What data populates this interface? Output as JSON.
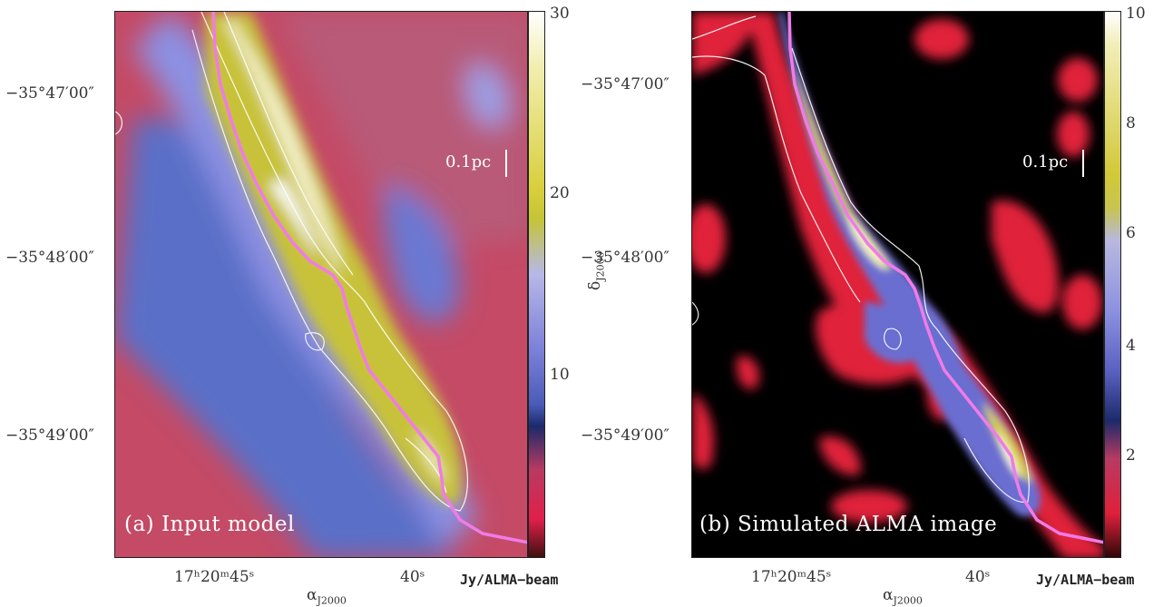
{
  "panels": [
    {
      "caption": "(a) Input model",
      "scale_label": "0.1pc",
      "colorbar_ticks": [
        "30",
        "20",
        "10"
      ],
      "dec_ticks": [
        "−35°47′00″",
        "−35°48′00″",
        "−35°49′00″"
      ],
      "ra_ticks": [
        "17ʰ20ᵐ45ˢ",
        "40ˢ"
      ],
      "x_axis_label": "α",
      "x_axis_sub": "J2000",
      "unit": "Jy/ALMA−beam"
    },
    {
      "caption": "(b) Simulated ALMA image",
      "scale_label": "0.1pc",
      "colorbar_ticks": [
        "10",
        "8",
        "6",
        "4",
        "2"
      ],
      "dec_ticks": [
        "−35°47′00″",
        "−35°48′00″",
        "−35°49′00″"
      ],
      "ra_ticks": [
        "17ʰ20ᵐ45ˢ",
        "40ˢ"
      ],
      "x_axis_label": "α",
      "x_axis_sub": "J2000",
      "y_axis_label": "δ",
      "y_axis_sub": "J2000",
      "unit": "Jy/ALMA−beam"
    }
  ],
  "colors": {
    "filament_path": "#f07be8",
    "contour": "#ffffff",
    "map_a_background": "#c8485e",
    "map_b_background": "#000000"
  }
}
